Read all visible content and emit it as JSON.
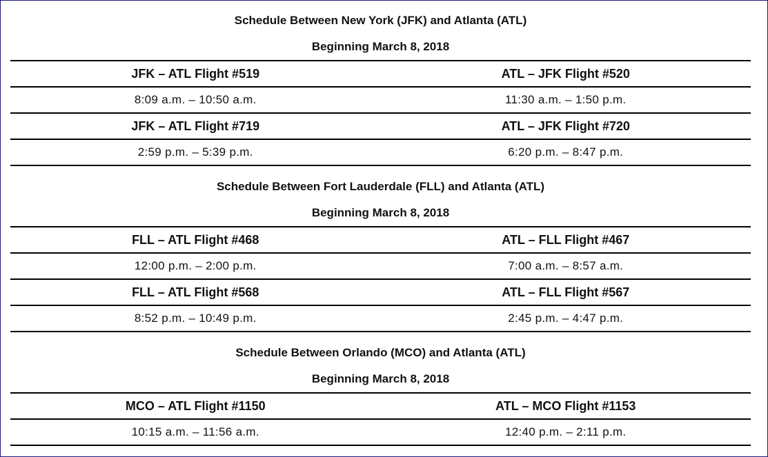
{
  "sections": [
    {
      "title": "Schedule Between New York (JFK) and Atlanta (ATL)",
      "subtitle": "Beginning March 8, 2018",
      "rows": [
        {
          "left": "JFK – ATL Flight #519",
          "right": "ATL – JFK Flight #520"
        },
        {
          "left": "8:09 a.m. – 10:50 a.m.",
          "right": "11:30 a.m. – 1:50 p.m."
        },
        {
          "left": "JFK – ATL Flight #719",
          "right": "ATL – JFK Flight #720"
        },
        {
          "left": "2:59 p.m. – 5:39 p.m.",
          "right": "6:20 p.m. – 8:47 p.m."
        }
      ]
    },
    {
      "title": "Schedule Between Fort Lauderdale (FLL) and Atlanta (ATL)",
      "subtitle": "Beginning March 8, 2018",
      "rows": [
        {
          "left": "FLL – ATL Flight #468",
          "right": "ATL – FLL Flight #467"
        },
        {
          "left": "12:00 p.m. – 2:00 p.m.",
          "right": "7:00 a.m. – 8:57 a.m."
        },
        {
          "left": "FLL – ATL Flight #568",
          "right": "ATL – FLL Flight #567"
        },
        {
          "left": "8:52 p.m. – 10:49 p.m.",
          "right": "2:45 p.m. – 4:47 p.m."
        }
      ]
    },
    {
      "title": "Schedule Between Orlando (MCO) and Atlanta (ATL)",
      "subtitle": "Beginning March 8, 2018",
      "rows": [
        {
          "left": "MCO – ATL Flight #1150",
          "right": "ATL – MCO Flight #1153"
        },
        {
          "left": "10:15 a.m. – 11:56 a.m.",
          "right": "12:40 p.m. – 2:11 p.m."
        }
      ]
    }
  ]
}
